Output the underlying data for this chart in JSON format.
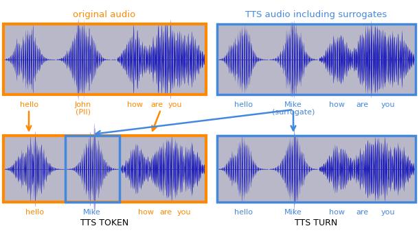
{
  "orange_color": "#FF8800",
  "blue_box_color": "#4488DD",
  "bg_color": "#B8B8C8",
  "wave_color": "#2222BB",
  "wave_edge_color": "#1111AA",
  "fig_bg": "#FFFFFF",
  "original_audio_label": "original audio",
  "tts_audio_label": "TTS audio including surrogates",
  "tts_token_label": "TTS TOKEN",
  "tts_turn_label": "TTS TURN"
}
